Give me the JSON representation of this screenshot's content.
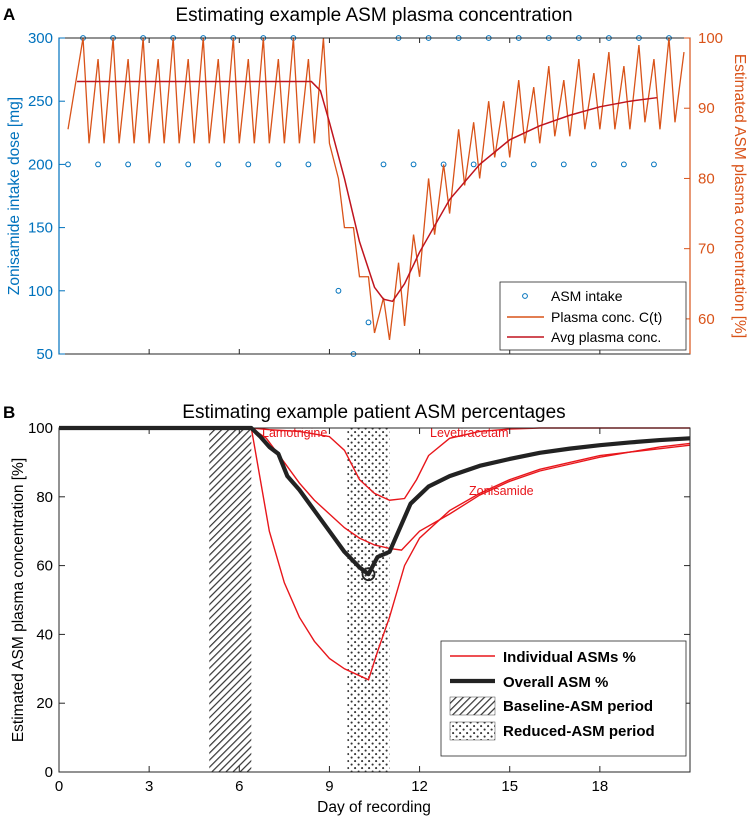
{
  "colors": {
    "left_axis": "#0072BD",
    "right_axis": "#D95319",
    "plasma_line": "#D95319",
    "avg_line": "#C0141E",
    "asm_red": "#E8161B",
    "overall": "#222222"
  },
  "chart_data": [
    {
      "panel_label": "A",
      "type": "line",
      "title": "Estimating example ASM plasma concentration",
      "ylabel_left": "Zonisamide intake dose [mg]",
      "ylabel_right": "Estimated ASM plasma concentration [%]",
      "ylim_left": [
        50,
        300
      ],
      "ylim_right": [
        55,
        100
      ],
      "xlim": [
        0,
        21
      ],
      "left_ticks": [
        "50",
        "100",
        "150",
        "200",
        "250",
        "300"
      ],
      "right_ticks": [
        "60",
        "70",
        "80",
        "90",
        "100"
      ],
      "legend": [
        "ASM intake",
        "Plasma conc. C(t)",
        "Avg plasma conc."
      ],
      "legend_position": "bottom-right",
      "series": [
        {
          "name": "ASM intake",
          "marker": "circle",
          "points": [
            [
              0.3,
              200
            ],
            [
              0.8,
              300
            ],
            [
              1.3,
              200
            ],
            [
              1.8,
              300
            ],
            [
              2.3,
              200
            ],
            [
              2.8,
              300
            ],
            [
              3.3,
              200
            ],
            [
              3.8,
              300
            ],
            [
              4.3,
              200
            ],
            [
              4.8,
              300
            ],
            [
              5.3,
              200
            ],
            [
              5.8,
              300
            ],
            [
              6.3,
              200
            ],
            [
              6.8,
              300
            ],
            [
              7.3,
              200
            ],
            [
              7.8,
              300
            ],
            [
              8.3,
              200
            ],
            [
              9.3,
              100
            ],
            [
              9.8,
              50
            ],
            [
              10.3,
              75
            ],
            [
              10.8,
              200
            ],
            [
              11.3,
              300
            ],
            [
              11.8,
              200
            ],
            [
              12.3,
              300
            ],
            [
              12.8,
              200
            ],
            [
              13.3,
              300
            ],
            [
              13.8,
              200
            ],
            [
              14.3,
              300
            ],
            [
              14.8,
              200
            ],
            [
              15.3,
              300
            ],
            [
              15.8,
              200
            ],
            [
              16.3,
              300
            ],
            [
              16.8,
              200
            ],
            [
              17.3,
              300
            ],
            [
              17.8,
              200
            ],
            [
              18.3,
              300
            ],
            [
              18.8,
              200
            ],
            [
              19.3,
              300
            ],
            [
              19.8,
              200
            ],
            [
              20.3,
              300
            ]
          ]
        },
        {
          "name": "Plasma conc. C(t)",
          "sawtooth": {
            "peaks": [
              [
                0.8,
                100
              ],
              [
                1.3,
                97
              ],
              [
                1.8,
                100
              ],
              [
                2.3,
                97
              ],
              [
                2.8,
                100
              ],
              [
                3.3,
                97
              ],
              [
                3.8,
                100
              ],
              [
                4.3,
                97
              ],
              [
                4.8,
                100
              ],
              [
                5.3,
                97
              ],
              [
                5.8,
                100
              ],
              [
                6.3,
                97
              ],
              [
                6.8,
                100
              ],
              [
                7.3,
                97
              ],
              [
                7.8,
                100
              ],
              [
                8.3,
                97
              ],
              [
                8.8,
                100
              ],
              [
                9.3,
                80
              ],
              [
                9.8,
                73
              ],
              [
                10.3,
                66
              ],
              [
                10.8,
                63
              ],
              [
                11.3,
                68
              ],
              [
                11.8,
                72
              ],
              [
                12.3,
                80
              ],
              [
                12.8,
                82
              ],
              [
                13.3,
                87
              ],
              [
                13.8,
                88
              ],
              [
                14.3,
                91
              ],
              [
                14.8,
                91
              ],
              [
                15.3,
                94
              ],
              [
                15.8,
                93
              ],
              [
                16.3,
                96
              ],
              [
                16.8,
                94
              ],
              [
                17.3,
                97
              ],
              [
                17.8,
                95
              ],
              [
                18.3,
                98
              ],
              [
                18.8,
                96
              ],
              [
                19.3,
                99
              ],
              [
                19.8,
                97
              ],
              [
                20.3,
                100
              ],
              [
                20.8,
                98
              ]
            ],
            "troughs": [
              [
                0.3,
                87
              ],
              [
                1.0,
                85
              ],
              [
                1.5,
                85
              ],
              [
                2.0,
                85
              ],
              [
                2.5,
                85
              ],
              [
                3.0,
                85
              ],
              [
                3.5,
                85
              ],
              [
                4.0,
                85
              ],
              [
                4.5,
                85
              ],
              [
                5.0,
                85
              ],
              [
                5.5,
                85
              ],
              [
                6.0,
                85
              ],
              [
                6.5,
                85
              ],
              [
                7.0,
                85
              ],
              [
                7.5,
                85
              ],
              [
                8.0,
                85
              ],
              [
                8.5,
                85
              ],
              [
                9.0,
                85
              ],
              [
                9.5,
                73
              ],
              [
                10.0,
                66
              ],
              [
                10.5,
                58
              ],
              [
                11.0,
                57
              ],
              [
                11.5,
                59
              ],
              [
                12.0,
                66
              ],
              [
                12.5,
                72
              ],
              [
                13.0,
                75
              ],
              [
                13.5,
                79
              ],
              [
                14.0,
                80
              ],
              [
                14.5,
                83
              ],
              [
                15.0,
                83
              ],
              [
                15.5,
                85
              ],
              [
                16.0,
                85
              ],
              [
                16.5,
                86
              ],
              [
                17.0,
                86
              ],
              [
                17.5,
                87
              ],
              [
                18.0,
                87
              ],
              [
                18.5,
                87
              ],
              [
                19.0,
                87
              ],
              [
                19.5,
                88
              ],
              [
                20.0,
                87
              ],
              [
                20.5,
                88
              ]
            ]
          }
        },
        {
          "name": "Avg plasma conc.",
          "points": [
            [
              0.6,
              93.8
            ],
            [
              8.4,
              93.8
            ],
            [
              8.7,
              92.5
            ],
            [
              9.0,
              88.0
            ],
            [
              9.5,
              80.0
            ],
            [
              10.0,
              71.0
            ],
            [
              10.5,
              64.5
            ],
            [
              10.8,
              62.8
            ],
            [
              11.1,
              62.5
            ],
            [
              11.5,
              65.0
            ],
            [
              12.0,
              69.5
            ],
            [
              13.0,
              77.0
            ],
            [
              14.0,
              82.0
            ],
            [
              15.0,
              85.5
            ],
            [
              16.0,
              87.5
            ],
            [
              17.0,
              89.0
            ],
            [
              18.0,
              90.2
            ],
            [
              19.0,
              91.0
            ],
            [
              19.9,
              91.5
            ]
          ]
        }
      ]
    },
    {
      "panel_label": "B",
      "type": "line",
      "title": "Estimating example patient ASM percentages",
      "xlabel": "Day of recording",
      "ylabel": "Estimated ASM plasma concentration [%]",
      "xlim": [
        0,
        21
      ],
      "ylim": [
        0,
        100
      ],
      "x_ticks": [
        "0",
        "3",
        "6",
        "9",
        "12",
        "15",
        "18"
      ],
      "y_ticks": [
        "0",
        "20",
        "40",
        "60",
        "80",
        "100"
      ],
      "legend": [
        "Individual ASMs %",
        "Overall ASM %",
        "Baseline-ASM period",
        "Reduced-ASM period"
      ],
      "legend_position": "bottom-right",
      "baseline_period": [
        5.0,
        6.4
      ],
      "reduced_period": [
        9.6,
        11.0
      ],
      "minimum_marker": [
        10.3,
        57.5
      ],
      "annotations": [
        "Lamotrigine",
        "Levetiracetam",
        "Zonisamide"
      ],
      "series": [
        {
          "name": "Overall ASM %",
          "points": [
            [
              0,
              100
            ],
            [
              6.4,
              100
            ],
            [
              6.7,
              97.5
            ],
            [
              7.0,
              94.5
            ],
            [
              7.3,
              92.5
            ],
            [
              7.6,
              86.0
            ],
            [
              8.0,
              82.0
            ],
            [
              8.5,
              76.0
            ],
            [
              9.0,
              70.0
            ],
            [
              9.5,
              64.0
            ],
            [
              10.0,
              59.5
            ],
            [
              10.3,
              57.5
            ],
            [
              10.6,
              62.5
            ],
            [
              11.0,
              64.0
            ],
            [
              11.3,
              70.0
            ],
            [
              11.7,
              78.0
            ],
            [
              12.3,
              83.0
            ],
            [
              13.0,
              86.0
            ],
            [
              14.0,
              89.0
            ],
            [
              15.0,
              91.0
            ],
            [
              16.0,
              92.8
            ],
            [
              17.0,
              94.0
            ],
            [
              18.0,
              95.0
            ],
            [
              19.0,
              95.8
            ],
            [
              20.0,
              96.5
            ],
            [
              21.0,
              97.0
            ]
          ]
        },
        {
          "label": "Lamotrigine",
          "points": [
            [
              0,
              100
            ],
            [
              6.4,
              100
            ],
            [
              6.7,
              85.0
            ],
            [
              7.0,
              70.0
            ],
            [
              7.5,
              55.0
            ],
            [
              8.0,
              45.0
            ],
            [
              8.5,
              38.0
            ],
            [
              9.0,
              33.0
            ],
            [
              9.5,
              30.0
            ],
            [
              10.0,
              28.0
            ],
            [
              10.3,
              26.8
            ],
            [
              10.6,
              35.0
            ],
            [
              11.0,
              45.0
            ],
            [
              11.5,
              60.0
            ],
            [
              12.0,
              68.0
            ],
            [
              13.0,
              76.0
            ],
            [
              14.0,
              81.0
            ],
            [
              15.0,
              85.0
            ],
            [
              16.0,
              88.0
            ],
            [
              17.0,
              90.0
            ],
            [
              18.0,
              92.0
            ],
            [
              19.0,
              93.0
            ],
            [
              20.0,
              94.0
            ],
            [
              21.0,
              95.0
            ]
          ]
        },
        {
          "label": "Levetiracetam",
          "points": [
            [
              0,
              100
            ],
            [
              6.4,
              100
            ],
            [
              7.0,
              99.5
            ],
            [
              8.0,
              99.0
            ],
            [
              9.0,
              97.5
            ],
            [
              9.5,
              93.5
            ],
            [
              10.0,
              85.0
            ],
            [
              10.5,
              81.0
            ],
            [
              11.0,
              79.0
            ],
            [
              11.5,
              79.5
            ],
            [
              11.9,
              85.0
            ],
            [
              12.3,
              92.0
            ],
            [
              13.0,
              97.0
            ],
            [
              14.0,
              99.0
            ],
            [
              15.0,
              99.7
            ],
            [
              16.0,
              100
            ],
            [
              21.0,
              100
            ]
          ]
        },
        {
          "label": "Zonisamide",
          "points": [
            [
              0,
              100
            ],
            [
              6.4,
              100
            ],
            [
              6.9,
              97.0
            ],
            [
              7.5,
              90.0
            ],
            [
              8.0,
              84.0
            ],
            [
              8.5,
              79.0
            ],
            [
              9.0,
              75.0
            ],
            [
              9.5,
              71.0
            ],
            [
              10.0,
              68.0
            ],
            [
              10.5,
              66.0
            ],
            [
              11.0,
              65.0
            ],
            [
              11.4,
              64.5
            ],
            [
              12.0,
              70.0
            ],
            [
              13.0,
              75.0
            ],
            [
              14.0,
              80.5
            ],
            [
              15.0,
              84.5
            ],
            [
              16.0,
              87.5
            ],
            [
              17.0,
              89.5
            ],
            [
              18.0,
              91.5
            ],
            [
              19.0,
              93.0
            ],
            [
              20.0,
              94.5
            ],
            [
              21.0,
              95.5
            ]
          ]
        }
      ]
    }
  ]
}
